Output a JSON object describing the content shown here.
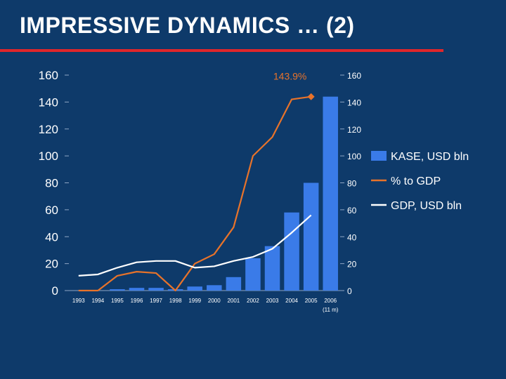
{
  "slide": {
    "title": "IMPRESSIVE DYNAMICS … (2)"
  },
  "colors": {
    "background": "#0e3a6a",
    "title_rule": "#e0262b",
    "bars": "#3a7be8",
    "pct_line": "#e8732a",
    "gdp_line": "#ffffff"
  },
  "chart_data": {
    "type": "bar",
    "categories": [
      "1993",
      "1994",
      "1995",
      "1996",
      "1997",
      "1998",
      "1999",
      "2000",
      "2001",
      "2002",
      "2003",
      "2004",
      "2005",
      "2006"
    ],
    "x_note": "(11 m)",
    "ylim": [
      0,
      160
    ],
    "y_ticks": [
      0,
      20,
      40,
      60,
      80,
      100,
      120,
      140,
      160
    ],
    "y2lim": [
      0,
      160
    ],
    "y2_ticks": [
      0,
      20,
      40,
      60,
      80,
      100,
      120,
      140,
      160
    ],
    "series": [
      {
        "name": "KASE, USD bln",
        "kind": "bar",
        "axis": "left",
        "values": [
          0,
          0,
          1,
          2,
          2,
          1,
          3,
          4,
          10,
          24,
          33,
          58,
          80,
          144
        ]
      },
      {
        "name": "% to GDP",
        "kind": "line",
        "axis": "right",
        "values": [
          0,
          0,
          11,
          14,
          13,
          0,
          20,
          27,
          47,
          100,
          114,
          142,
          144,
          null
        ]
      },
      {
        "name": "GDP, USD bln",
        "kind": "line",
        "axis": "left",
        "values": [
          11,
          12,
          17,
          21,
          22,
          22,
          17,
          18,
          22,
          25,
          31,
          43,
          56,
          null
        ]
      }
    ],
    "annotations": [
      {
        "text": "143.9%",
        "category": "2005",
        "series": "% to GDP",
        "value": 144
      }
    ],
    "legend_position": "right",
    "grid": false
  }
}
